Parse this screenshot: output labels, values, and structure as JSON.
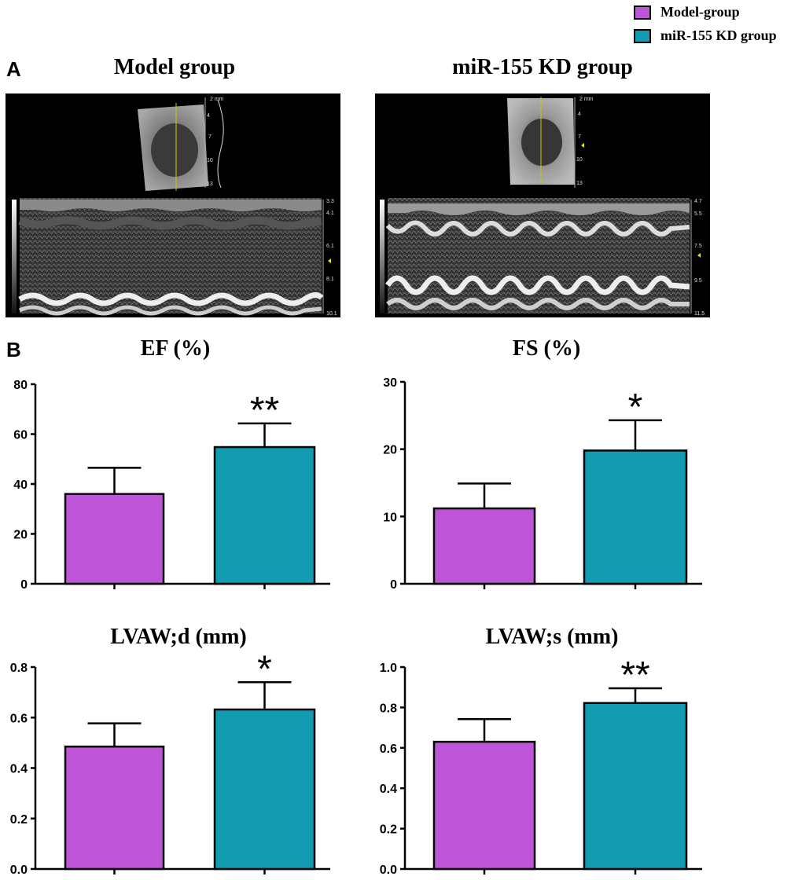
{
  "legend": {
    "items": [
      {
        "label": "Model-group",
        "color": "#bd55d6"
      },
      {
        "label": "miR-155 KD group",
        "color": "#139bb2"
      }
    ]
  },
  "panel_a": {
    "letter": "A",
    "images": [
      {
        "title": "Model group",
        "depth_ticks": [
          "2 mm",
          "4",
          "7",
          "10",
          "13"
        ],
        "mmode_ticks": [
          "3.3",
          "4.1",
          "6.1",
          "8.1",
          "10.1"
        ]
      },
      {
        "title": "miR-155 KD group",
        "depth_ticks": [
          "2 mm",
          "4",
          "7",
          "10",
          "13"
        ],
        "mmode_ticks": [
          "4.7",
          "5.5",
          "7.5",
          "9.5",
          "11.5"
        ]
      }
    ]
  },
  "panel_b": {
    "letter": "B"
  },
  "colors": {
    "model": "#bd55d6",
    "kd": "#139bb2"
  },
  "chart_data": [
    {
      "type": "bar",
      "title": "EF (%)",
      "categories": [
        "Model-group",
        "miR-155 KD group"
      ],
      "values": [
        36,
        54.8
      ],
      "error": [
        10.5,
        9.5
      ],
      "significance": [
        "",
        "**"
      ],
      "ylim": [
        0,
        80
      ],
      "yticks": [
        "0",
        "20",
        "40",
        "60",
        "80"
      ]
    },
    {
      "type": "bar",
      "title": "FS (%)",
      "categories": [
        "Model-group",
        "miR-155 KD group"
      ],
      "values": [
        11.2,
        19.8
      ],
      "error": [
        3.7,
        4.5
      ],
      "significance": [
        "",
        "*"
      ],
      "ylim": [
        0,
        30
      ],
      "yticks": [
        "0",
        "10",
        "20",
        "30"
      ]
    },
    {
      "type": "bar",
      "title": "LVAW;d (mm)",
      "categories": [
        "Model-group",
        "miR-155 KD group"
      ],
      "values": [
        0.485,
        0.632
      ],
      "error": [
        0.092,
        0.108
      ],
      "significance": [
        "",
        "*"
      ],
      "ylim": [
        0,
        0.8
      ],
      "yticks": [
        "0.0",
        "0.2",
        "0.4",
        "0.6",
        "0.8"
      ]
    },
    {
      "type": "bar",
      "title": "LVAW;s (mm)",
      "categories": [
        "Model-group",
        "miR-155 KD group"
      ],
      "values": [
        0.63,
        0.822
      ],
      "error": [
        0.112,
        0.073
      ],
      "significance": [
        "",
        "**"
      ],
      "ylim": [
        0,
        1.0
      ],
      "yticks": [
        "0.0",
        "0.2",
        "0.4",
        "0.6",
        "0.8",
        "1.0"
      ]
    }
  ]
}
